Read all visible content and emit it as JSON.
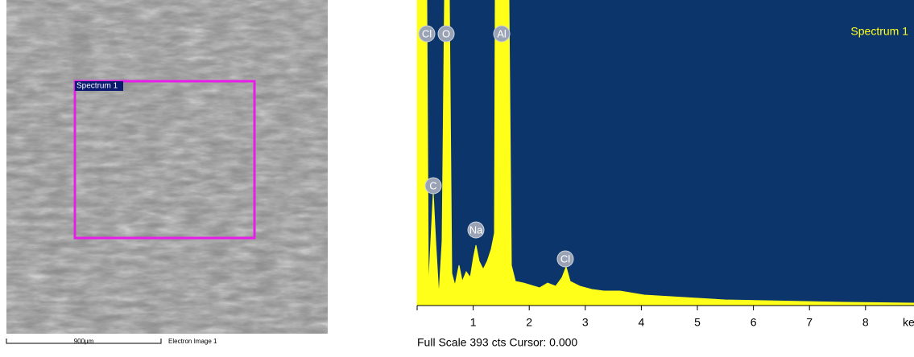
{
  "sem_image": {
    "region_label": "Spectrum 1",
    "scale_label": "900µm",
    "caption": "Electron Image 1"
  },
  "spectrum": {
    "title": "Spectrum 1",
    "peaks": [
      "Cl",
      "O",
      "Al",
      "C",
      "Na",
      "Cl"
    ],
    "ticks": [
      "1",
      "2",
      "3",
      "4",
      "5",
      "6",
      "7",
      "8"
    ],
    "unit": "keV",
    "footer": "Full Scale 393 cts Cursor: 0.000"
  }
}
